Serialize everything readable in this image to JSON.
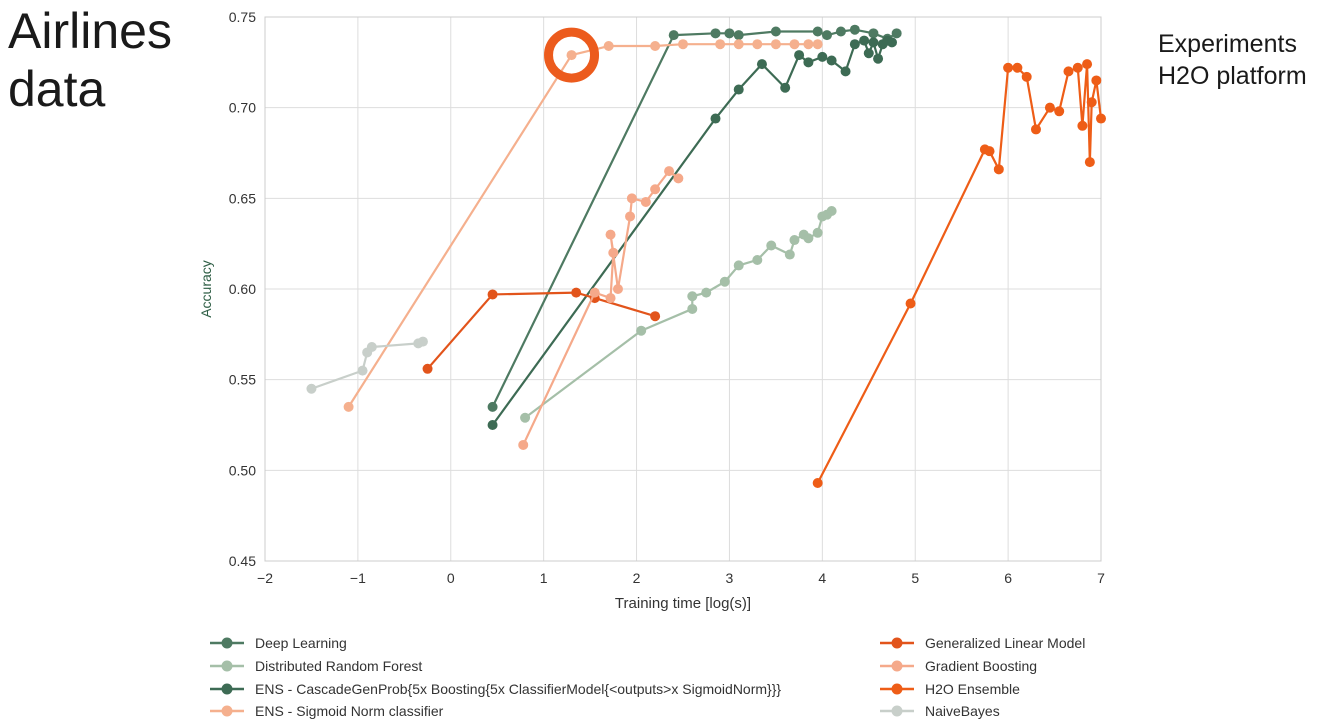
{
  "slide": {
    "title_line1": "Airlines",
    "title_line2": "data",
    "note_line1": "Experiments",
    "note_line2": "H2O platform"
  },
  "chart_data": {
    "type": "line",
    "title": "",
    "xlabel": "Training time [log(s)]",
    "ylabel": "Accuracy",
    "xlim": [
      -2,
      7
    ],
    "ylim": [
      0.45,
      0.75
    ],
    "xticks": [
      -2,
      -1,
      0,
      1,
      2,
      3,
      4,
      5,
      6,
      7
    ],
    "yticks": [
      0.45,
      0.5,
      0.55,
      0.6,
      0.65,
      0.7,
      0.75
    ],
    "grid": true,
    "legend_position": "bottom",
    "highlight": {
      "x": 1.3,
      "y": 0.729,
      "color": "#ec5b1d"
    },
    "series": [
      {
        "name": "Deep Learning",
        "color": "#4e7a62",
        "x": [
          0.45,
          2.4,
          2.85,
          3.0,
          3.1,
          3.5,
          3.95,
          4.05,
          4.2,
          4.35,
          4.55,
          4.7,
          4.8
        ],
        "y": [
          0.535,
          0.74,
          0.741,
          0.741,
          0.74,
          0.742,
          0.742,
          0.74,
          0.742,
          0.743,
          0.741,
          0.738,
          0.741
        ]
      },
      {
        "name": "Distributed Random Forest",
        "color": "#a5bfa8",
        "x": [
          0.8,
          2.05,
          2.6,
          2.6,
          2.75,
          2.95,
          3.1,
          3.3,
          3.45,
          3.65,
          3.7,
          3.8,
          3.85,
          3.95,
          4.0,
          4.05,
          4.1
        ],
        "y": [
          0.529,
          0.577,
          0.589,
          0.596,
          0.598,
          0.604,
          0.613,
          0.616,
          0.624,
          0.619,
          0.627,
          0.63,
          0.628,
          0.631,
          0.64,
          0.641,
          0.643
        ]
      },
      {
        "name": "ENS - CascadeGenProb{5x Boosting{5x ClassifierModel{<outputs>x SigmoidNorm}}}",
        "color": "#3d6b54",
        "x": [
          0.45,
          2.85,
          3.1,
          3.35,
          3.6,
          3.75,
          3.85,
          4.0,
          4.1,
          4.25,
          4.35,
          4.45,
          4.5,
          4.55,
          4.6,
          4.65,
          4.7,
          4.75
        ],
        "y": [
          0.525,
          0.694,
          0.71,
          0.724,
          0.711,
          0.729,
          0.725,
          0.728,
          0.726,
          0.72,
          0.735,
          0.737,
          0.73,
          0.736,
          0.727,
          0.735,
          0.737,
          0.736
        ]
      },
      {
        "name": "ENS - Sigmoid Norm classifier",
        "color": "#f5b08e",
        "x": [
          -1.1,
          1.3,
          1.7,
          2.2,
          2.5,
          2.9,
          3.1,
          3.3,
          3.5,
          3.7,
          3.85,
          3.95
        ],
        "y": [
          0.535,
          0.729,
          0.734,
          0.734,
          0.735,
          0.735,
          0.735,
          0.735,
          0.735,
          0.735,
          0.735,
          0.735
        ]
      },
      {
        "name": "Generalized Linear Model",
        "color": "#e2541b",
        "x": [
          -0.25,
          0.45,
          1.35,
          1.55,
          2.2
        ],
        "y": [
          0.556,
          0.597,
          0.598,
          0.595,
          0.585
        ]
      },
      {
        "name": "Gradient Boosting",
        "color": "#f5a98a",
        "x": [
          0.78,
          1.55,
          1.72,
          1.75,
          1.72,
          1.8,
          1.93,
          1.95,
          2.1,
          2.2,
          2.35,
          2.45
        ],
        "y": [
          0.514,
          0.598,
          0.595,
          0.62,
          0.63,
          0.6,
          0.64,
          0.65,
          0.648,
          0.655,
          0.665,
          0.661
        ]
      },
      {
        "name": "H2O Ensemble",
        "color": "#ee5d17",
        "x": [
          3.95,
          4.95,
          5.75,
          5.8,
          5.9,
          6.0,
          6.1,
          6.2,
          6.3,
          6.45,
          6.55,
          6.65,
          6.75,
          6.8,
          6.85,
          6.88,
          6.9,
          6.95,
          7.0
        ],
        "y": [
          0.493,
          0.592,
          0.677,
          0.676,
          0.666,
          0.722,
          0.722,
          0.717,
          0.688,
          0.7,
          0.698,
          0.72,
          0.722,
          0.69,
          0.724,
          0.67,
          0.703,
          0.715,
          0.694
        ]
      },
      {
        "name": "NaiveBayes",
        "color": "#c8cfca",
        "x": [
          -1.5,
          -0.95,
          -0.9,
          -0.85,
          -0.35,
          -0.3
        ],
        "y": [
          0.545,
          0.555,
          0.565,
          0.568,
          0.57,
          0.571
        ]
      }
    ]
  }
}
